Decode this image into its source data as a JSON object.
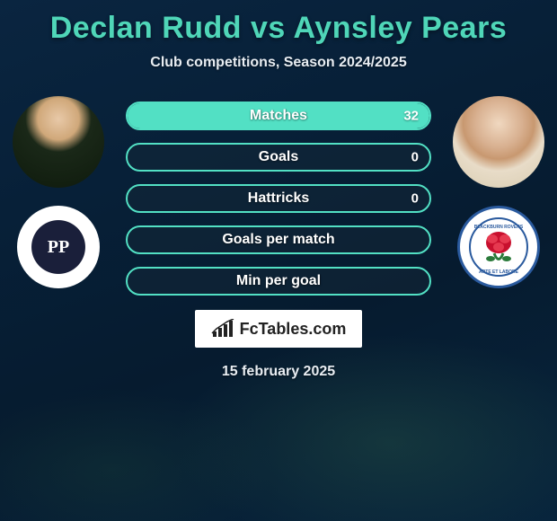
{
  "title": "Declan Rudd vs Aynsley Pears",
  "subtitle": "Club competitions, Season 2024/2025",
  "date": "15 february 2025",
  "brand": {
    "name": "FcTables.com"
  },
  "colors": {
    "title": "#4fd6b8",
    "text": "#e8edf2",
    "bar_bg": "rgba(20,40,55,0.5)",
    "logo_white": "#ffffff"
  },
  "player_left": {
    "name": "Declan Rudd",
    "team": "Preston North End"
  },
  "player_right": {
    "name": "Aynsley Pears",
    "team": "Blackburn Rovers"
  },
  "stats": [
    {
      "label": "Matches",
      "left_value": "",
      "right_value": "32",
      "left_pct": 0,
      "right_pct": 100,
      "border_color": "#52e0c4",
      "left_fill": "#52e0c4",
      "right_fill": "#52e0c4"
    },
    {
      "label": "Goals",
      "left_value": "",
      "right_value": "0",
      "left_pct": 0,
      "right_pct": 0,
      "border_color": "#52e0c4",
      "left_fill": "#52e0c4",
      "right_fill": "#52e0c4"
    },
    {
      "label": "Hattricks",
      "left_value": "",
      "right_value": "0",
      "left_pct": 0,
      "right_pct": 0,
      "border_color": "#52e0c4",
      "left_fill": "#52e0c4",
      "right_fill": "#52e0c4"
    },
    {
      "label": "Goals per match",
      "left_value": "",
      "right_value": "",
      "left_pct": 0,
      "right_pct": 0,
      "border_color": "#52e0c4",
      "left_fill": "#52e0c4",
      "right_fill": "#52e0c4"
    },
    {
      "label": "Min per goal",
      "left_value": "",
      "right_value": "",
      "left_pct": 0,
      "right_pct": 0,
      "border_color": "#52e0c4",
      "left_fill": "#52e0c4",
      "right_fill": "#52e0c4"
    }
  ]
}
